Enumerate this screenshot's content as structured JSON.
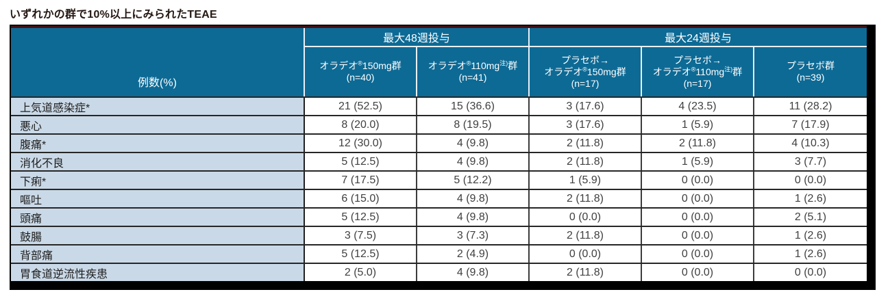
{
  "chart_data": {
    "type": "table",
    "title": "いずれかの群で10%以上にみられたTEAE",
    "corner_header": "例数(%)",
    "column_groups": [
      {
        "label": "最大48週投与",
        "span": 2
      },
      {
        "label": "最大24週投与",
        "span": 3
      }
    ],
    "columns": [
      {
        "name": "オラデオ®150mg群 (n=40)",
        "lines": [
          [
            {
              "t": "オラデオ"
            },
            {
              "t": "®",
              "sup": true
            },
            {
              "t": "150mg群"
            }
          ],
          [
            {
              "t": "(n=40)"
            }
          ]
        ]
      },
      {
        "name": "オラデオ®110mg注)群 (n=41)",
        "lines": [
          [
            {
              "t": "オラデオ"
            },
            {
              "t": "®",
              "sup": true
            },
            {
              "t": "110mg"
            },
            {
              "t": "注)",
              "sup": true
            },
            {
              "t": "群"
            }
          ],
          [
            {
              "t": "(n=41)"
            }
          ]
        ]
      },
      {
        "name": "プラセボ→オラデオ®150mg群 (n=17)",
        "lines": [
          [
            {
              "t": "プラセボ→"
            }
          ],
          [
            {
              "t": "オラデオ"
            },
            {
              "t": "®",
              "sup": true
            },
            {
              "t": "150mg群"
            }
          ],
          [
            {
              "t": "(n=17)"
            }
          ]
        ]
      },
      {
        "name": "プラセボ→オラデオ®110mg注)群 (n=17)",
        "lines": [
          [
            {
              "t": "プラセボ→"
            }
          ],
          [
            {
              "t": "オラデオ"
            },
            {
              "t": "®",
              "sup": true
            },
            {
              "t": "110mg"
            },
            {
              "t": "注)",
              "sup": true
            },
            {
              "t": "群"
            }
          ],
          [
            {
              "t": "(n=17)"
            }
          ]
        ]
      },
      {
        "name": "プラセボ群 (n=39)",
        "lines": [
          [
            {
              "t": "プラセボ群"
            }
          ],
          [
            {
              "t": "(n=39)"
            }
          ]
        ]
      }
    ],
    "rows": [
      {
        "label": "上気道感染症*",
        "values": [
          "21 (52.5)",
          "15 (36.6)",
          "3 (17.6)",
          "4 (23.5)",
          "11 (28.2)"
        ]
      },
      {
        "label": "悪心",
        "values": [
          "8 (20.0)",
          "8 (19.5)",
          "3 (17.6)",
          "1 (5.9)",
          "7 (17.9)"
        ]
      },
      {
        "label": "腹痛*",
        "values": [
          "12 (30.0)",
          "4 (9.8)",
          "2 (11.8)",
          "2 (11.8)",
          "4 (10.3)"
        ]
      },
      {
        "label": "消化不良",
        "values": [
          "5 (12.5)",
          "4 (9.8)",
          "2 (11.8)",
          "1 (5.9)",
          "3 (7.7)"
        ]
      },
      {
        "label": "下痢*",
        "values": [
          "7 (17.5)",
          "5 (12.2)",
          "1 (5.9)",
          "0 (0.0)",
          "0 (0.0)"
        ]
      },
      {
        "label": "嘔吐",
        "values": [
          "6 (15.0)",
          "4 (9.8)",
          "2 (11.8)",
          "0 (0.0)",
          "1 (2.6)"
        ]
      },
      {
        "label": "頭痛",
        "values": [
          "5 (12.5)",
          "4 (9.8)",
          "0 (0.0)",
          "0 (0.0)",
          "2 (5.1)"
        ]
      },
      {
        "label": "鼓腸",
        "values": [
          "3 (7.5)",
          "3 (7.3)",
          "2 (11.8)",
          "0 (0.0)",
          "1 (2.6)"
        ]
      },
      {
        "label": "背部痛",
        "values": [
          "5 (12.5)",
          "2 (4.9)",
          "0 (0.0)",
          "0 (0.0)",
          "1 (2.6)"
        ]
      },
      {
        "label": "胃食道逆流性疾患",
        "values": [
          "2 (5.0)",
          "4 (9.8)",
          "2 (11.8)",
          "0 (0.0)",
          "0 (0.0)"
        ]
      }
    ]
  },
  "colors": {
    "header_blue": "#0D6A95",
    "row_label_blue": "#CAD9E7",
    "accent_maroon": "#471014",
    "shadow_black": "#000000",
    "header_text": "#FFFFFF",
    "data_text": "#3F3F3F"
  }
}
